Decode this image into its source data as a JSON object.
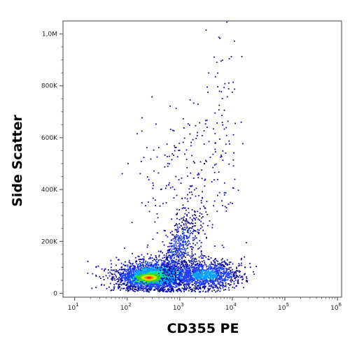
{
  "chart_data": {
    "type": "scatter",
    "subtype": "flow-cytometry-density-dot-plot",
    "xlabel": "CD355 PE",
    "ylabel": "Side Scatter",
    "x_scale": "log",
    "xlim": [
      6,
      1200000
    ],
    "ylim": [
      -15000,
      1050000
    ],
    "x_ticks": [
      {
        "value": 10,
        "base": "10",
        "exp": "1"
      },
      {
        "value": 100,
        "base": "10",
        "exp": "2"
      },
      {
        "value": 1000,
        "base": "10",
        "exp": "3"
      },
      {
        "value": 10000,
        "base": "10",
        "exp": "4"
      },
      {
        "value": 100000,
        "base": "10",
        "exp": "5"
      },
      {
        "value": 1000000,
        "base": "10",
        "exp": "6"
      }
    ],
    "y_ticks": [
      {
        "value": 0,
        "label": "0"
      },
      {
        "value": 200000,
        "label": "200K"
      },
      {
        "value": 400000,
        "label": "400K"
      },
      {
        "value": 600000,
        "label": "600K"
      },
      {
        "value": 800000,
        "label": "800K"
      },
      {
        "value": 1000000,
        "label": "1,0M"
      }
    ],
    "density_colors": [
      "#0a0aa8",
      "#1e3cff",
      "#00a0ff",
      "#00e0b0",
      "#40e000",
      "#e8e800",
      "#ff8000",
      "#ff1000"
    ],
    "populations": [
      {
        "name": "main",
        "x_center": 260,
        "y_center": 60000,
        "x_spread_log10": 0.25,
        "y_spread": 20000,
        "peak_density": 8
      },
      {
        "name": "main-broad",
        "x_center": 400,
        "y_center": 70000,
        "x_spread_log10": 0.45,
        "y_spread": 32000,
        "peak_density": 4
      },
      {
        "name": "tail",
        "x_center": 3000,
        "y_center": 70000,
        "x_spread_log10": 0.35,
        "y_spread": 28000,
        "peak_density": 3
      },
      {
        "name": "rising-arm",
        "x_center": 1000,
        "y_center": 180000,
        "x_spread_log10": 0.2,
        "y_spread": 50000,
        "peak_density": 2
      },
      {
        "name": "sparse-high",
        "x_center": 1500,
        "y_center": 420000,
        "x_spread_log10": 0.45,
        "y_spread": 180000,
        "peak_density": 1
      },
      {
        "name": "right-streak",
        "x_center": 7000,
        "y_center": 700000,
        "x_spread_log10": 0.12,
        "y_spread": 200000,
        "peak_density": 1
      }
    ],
    "grid": false,
    "legend": "none"
  }
}
